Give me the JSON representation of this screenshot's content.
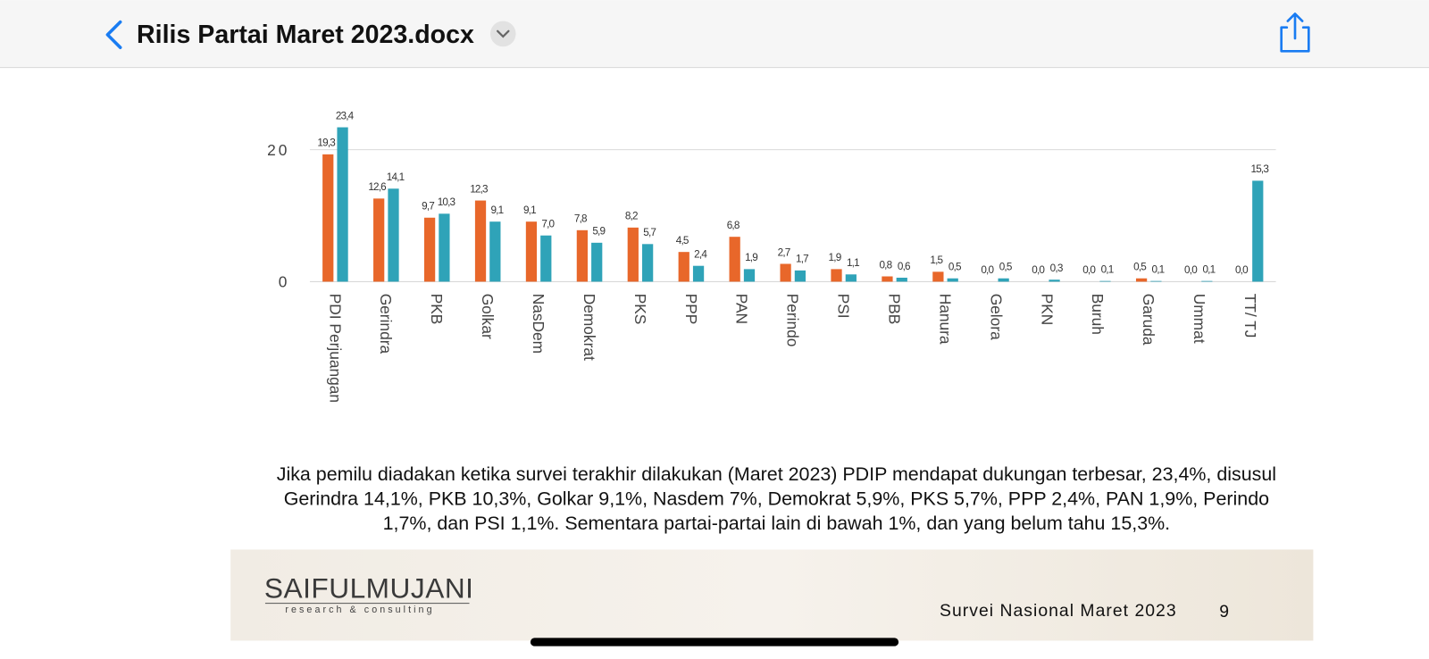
{
  "header": {
    "title": "Rilis Partai Maret 2023.docx"
  },
  "chart_data": {
    "type": "bar",
    "categories": [
      "PDI Perjuangan",
      "Gerindra",
      "PKB",
      "Golkar",
      "NasDem",
      "Demokrat",
      "PKS",
      "PPP",
      "PAN",
      "Perindo",
      "PSI",
      "PBB",
      "Hanura",
      "Gelora",
      "PKN",
      "Buruh",
      "Garuda",
      "Ummat",
      "TT/ TJ"
    ],
    "series": [
      {
        "color": "#e8672a",
        "values": [
          19.3,
          12.6,
          9.7,
          12.3,
          9.1,
          7.8,
          8.2,
          4.5,
          6.8,
          2.7,
          1.9,
          0.8,
          1.5,
          0.0,
          0.0,
          0.0,
          0.5,
          0.0,
          0.0
        ],
        "value_labels": [
          "19,3",
          "12,6",
          "9,7",
          "12,3",
          "9,1",
          "7,8",
          "8,2",
          "4,5",
          "6,8",
          "2,7",
          "1,9",
          "0,8",
          "1,5",
          "0,0",
          "0,0",
          "0,0",
          "0,5",
          "0,0",
          "0,0"
        ]
      },
      {
        "color": "#2fa3b8",
        "values": [
          23.4,
          14.1,
          10.3,
          9.1,
          7.0,
          5.9,
          5.7,
          2.4,
          1.9,
          1.7,
          1.1,
          0.6,
          0.5,
          0.5,
          0.3,
          0.1,
          0.1,
          0.1,
          15.3
        ],
        "value_labels": [
          "23,4",
          "14,1",
          "10,3",
          "9,1",
          "7,0",
          "5,9",
          "5,7",
          "2,4",
          "1,9",
          "1,7",
          "1,1",
          "0,6",
          "0,5",
          "0,5",
          "0,3",
          "0,1",
          "0,1",
          "0,1",
          "15,3"
        ]
      }
    ],
    "ylim": [
      0,
      25
    ],
    "yticks": [
      0,
      20
    ],
    "grid": true
  },
  "paragraph": "Jika pemilu diadakan ketika survei terakhir dilakukan (Maret 2023) PDIP mendapat dukungan terbesar, 23,4%, disusul Gerindra 14,1%, PKB 10,3%, Golkar 9,1%, Nasdem 7%, Demokrat 5,9%, PKS 5,7%, PPP 2,4%, PAN 1,9%, Perindo 1,7%, dan PSI 1,1%. Sementara partai-partai lain di bawah 1%, dan yang belum tahu 15,3%.",
  "footer": {
    "logo": "SAIFULMUJANI",
    "logo_sub": "research & consulting",
    "caption": "Survei Nasional Maret 2023",
    "page": "9"
  }
}
